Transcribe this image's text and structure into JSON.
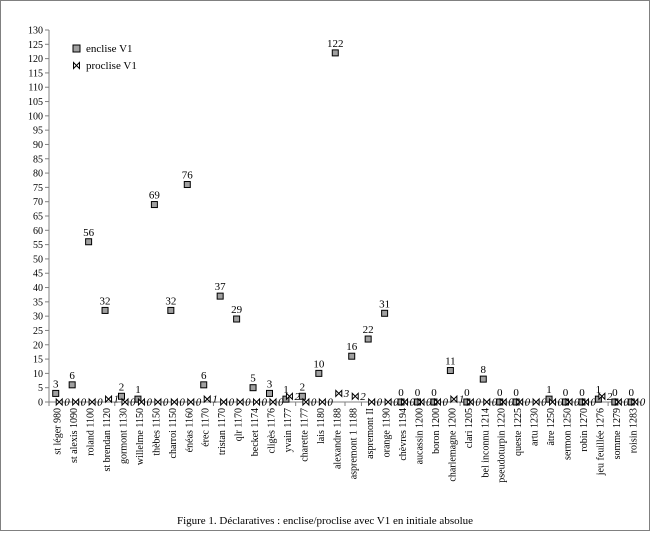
{
  "chart_data": {
    "type": "scatter",
    "caption": "Figure 1. Déclaratives : enclise/proclise avec V1 en initiale absolue",
    "ylim": [
      0,
      130
    ],
    "ytick_step": 5,
    "grid": false,
    "legend_placement": "top-left",
    "categories": [
      "st léger 980",
      "st alexis 1090",
      "roland 1100",
      "st brendan 1120",
      "gormont 1130",
      "willelme 1150",
      "thèbes 1150",
      "charroi 1150",
      "énéas 1160",
      "érec 1170",
      "tristan 1170",
      "qlr 1170",
      "becket 1174",
      "cligès 1176",
      "yvain 1177",
      "charette 1177",
      "lais 1180",
      "alexandre 1188",
      "aspremont 1 1188",
      "aspremont II",
      "orange 1190",
      "chèvres 1194",
      "aucassin 1200",
      "boron 1200",
      "charlemagne 1200",
      "clari 1205",
      "bel inconnu 1214",
      "pseudoturpin 1220",
      "queste 1225",
      "artu 1230",
      "âtre 1250",
      "sermon 1250",
      "robin 1270",
      "jeu feuillée 1276",
      "somme 1279",
      "roisin 1283"
    ],
    "series": [
      {
        "name": "enclise V1",
        "color": "#a0a0a0",
        "marker": "square",
        "values": [
          3,
          6,
          56,
          32,
          2,
          1,
          69,
          32,
          76,
          6,
          37,
          29,
          5,
          3,
          1,
          2,
          10,
          122,
          16,
          22,
          31,
          0,
          0,
          0,
          11,
          0,
          8,
          0,
          0,
          null,
          1,
          0,
          0,
          1,
          0,
          0
        ],
        "labels": [
          "3",
          "6",
          "56",
          "32",
          "2",
          "1",
          "69",
          "32",
          "76",
          "6",
          "37",
          "29",
          "5",
          "3",
          "1",
          "2",
          "10",
          "122",
          "16",
          "22",
          "31",
          "0",
          "0",
          "0",
          "11",
          "0",
          "8",
          "0",
          "0",
          "",
          "1",
          "0",
          "0",
          "1",
          "0",
          "0"
        ]
      },
      {
        "name": "proclise V1",
        "color": "#000000",
        "marker": "bowtie",
        "values": [
          0,
          0,
          0,
          1,
          0,
          0,
          0,
          0,
          0,
          1,
          0,
          0,
          0,
          0,
          2,
          0,
          0,
          3,
          2,
          0,
          0,
          0,
          0,
          0,
          1,
          0,
          0,
          0,
          0,
          0,
          0,
          0,
          0,
          2,
          0,
          0
        ],
        "labels": [
          "0",
          "0",
          "0",
          "1",
          "0",
          "0",
          "0",
          "0",
          "0",
          "1",
          "0",
          "0",
          "0",
          "0",
          "2",
          "0",
          "0",
          "3",
          "2",
          "0",
          "0",
          "0",
          "0",
          "0",
          "1",
          "0",
          "0",
          "0",
          "0",
          "0",
          "0",
          "0",
          "0",
          "2",
          "0",
          "0"
        ]
      }
    ]
  }
}
